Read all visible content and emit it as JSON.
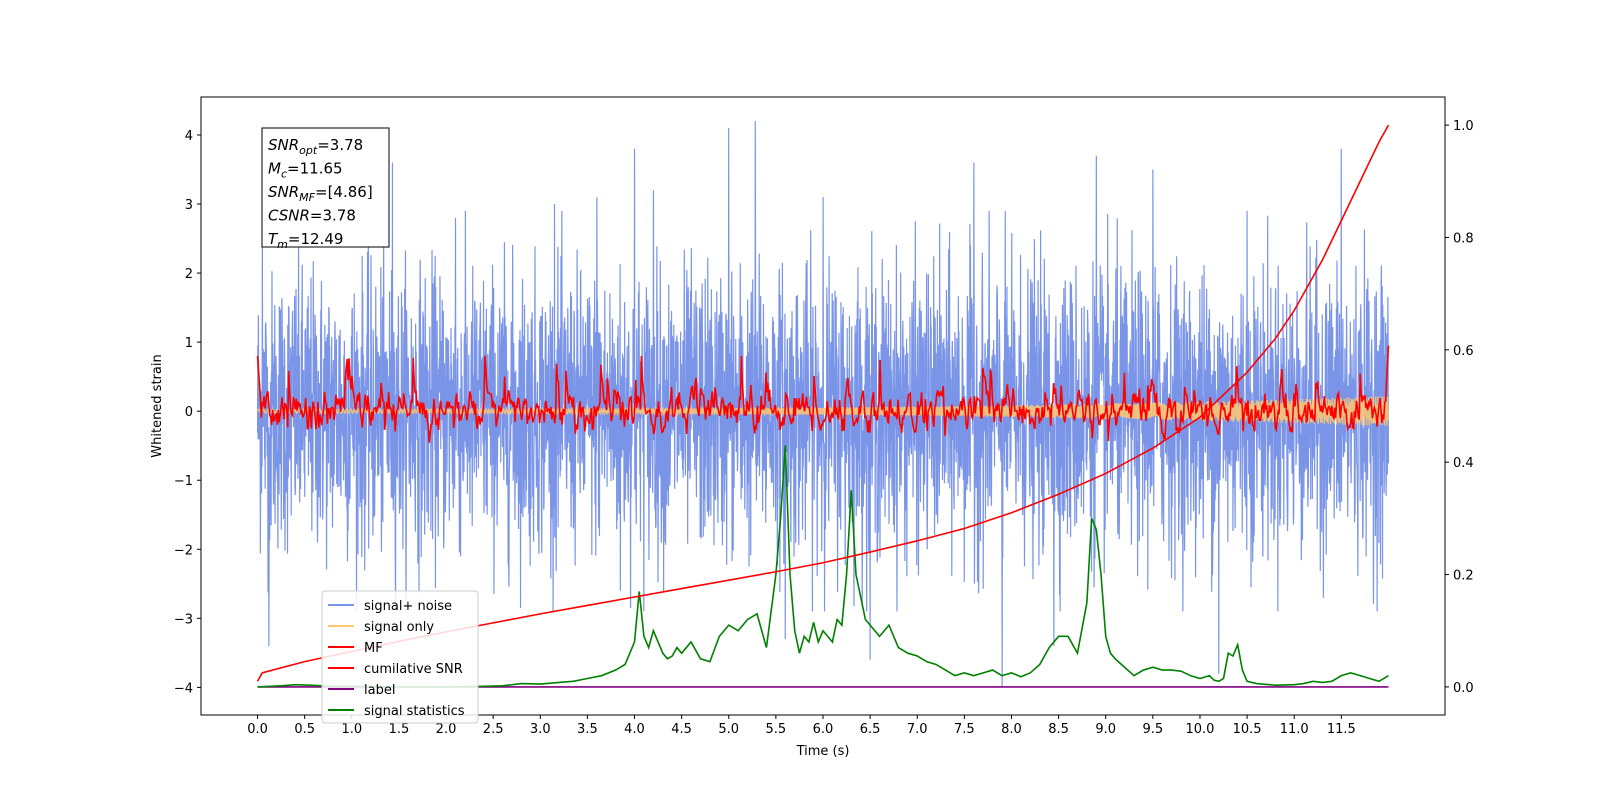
{
  "chart_data": {
    "type": "line",
    "xlabel": "Time (s)",
    "ylabel": "Whitened strain",
    "xlim": [
      -0.6,
      12.6
    ],
    "ylim": [
      -4.4,
      4.55
    ],
    "y2lim": [
      -0.05,
      1.05
    ],
    "x_ticks": [
      0.0,
      0.5,
      1.0,
      1.5,
      2.0,
      2.5,
      3.0,
      3.5,
      4.0,
      4.5,
      5.0,
      5.5,
      6.0,
      6.5,
      7.0,
      7.5,
      8.0,
      8.5,
      9.0,
      9.5,
      10.0,
      10.5,
      11.0,
      11.5
    ],
    "x_tick_labels": [
      "0.0",
      "0.5",
      "1.0",
      "1.5",
      "2.0",
      "2.5",
      "3.0",
      "3.5",
      "4.0",
      "4.5",
      "5.0",
      "5.5",
      "6.0",
      "6.5",
      "7.0",
      "7.5",
      "8.0",
      "8.5",
      "9.0",
      "9.5",
      "10.0",
      "10.5",
      "11.0",
      "11.5"
    ],
    "y_ticks": [
      -4,
      -3,
      -2,
      -1,
      0,
      1,
      2,
      3,
      4
    ],
    "y_tick_labels": [
      "−4",
      "−3",
      "−2",
      "−1",
      "0",
      "1",
      "2",
      "3",
      "4"
    ],
    "y2_ticks": [
      0.0,
      0.2,
      0.4,
      0.6,
      0.8,
      1.0
    ],
    "y2_tick_labels": [
      "0.0",
      "0.2",
      "0.4",
      "0.6",
      "0.8",
      "1.0"
    ],
    "grid": false,
    "legend_position": "lower-left",
    "annotation": [
      {
        "name": "SNR",
        "sub": "opt",
        "value": "=3.78"
      },
      {
        "name": "M",
        "sub": "c",
        "value": "=11.65"
      },
      {
        "name": "SNR",
        "sub": "MF",
        "value": "=[4.86]"
      },
      {
        "name": "CSNR",
        "sub": "",
        "value": "=3.78"
      },
      {
        "name": "T",
        "sub": "m",
        "value": "=12.49"
      }
    ],
    "series": [
      {
        "name": "signal+ noise",
        "color": "#7a95e8",
        "axis": "left",
        "kind": "noise",
        "x_range": [
          0,
          12.0
        ],
        "std": 1.0,
        "spikes": [
          {
            "x": 1.43,
            "y": 3.6
          },
          {
            "x": 3.15,
            "y": 3.0
          },
          {
            "x": 3.6,
            "y": 3.1
          },
          {
            "x": 3.85,
            "y": -2.6
          },
          {
            "x": 4.0,
            "y": 3.8
          },
          {
            "x": 4.2,
            "y": 3.2
          },
          {
            "x": 5.0,
            "y": 4.1
          },
          {
            "x": 5.28,
            "y": 4.2
          },
          {
            "x": 5.6,
            "y": -3.3
          },
          {
            "x": 6.0,
            "y": 3.1
          },
          {
            "x": 6.5,
            "y": -3.6
          },
          {
            "x": 7.6,
            "y": 3.6
          },
          {
            "x": 7.9,
            "y": -4.0
          },
          {
            "x": 8.45,
            "y": -3.4
          },
          {
            "x": 8.9,
            "y": 3.7
          },
          {
            "x": 9.5,
            "y": 3.5
          },
          {
            "x": 10.2,
            "y": -3.8
          },
          {
            "x": 11.5,
            "y": 3.8
          },
          {
            "x": 0.05,
            "y": 2.7
          },
          {
            "x": 0.12,
            "y": -3.4
          },
          {
            "x": 2.1,
            "y": 2.8
          },
          {
            "x": 10.5,
            "y": 2.9
          }
        ]
      },
      {
        "name": "signal only",
        "color": "#ffc870",
        "axis": "left",
        "kind": "chirp",
        "x_range": [
          0,
          12.0
        ],
        "amp_start": 0.03,
        "amp_end": 0.22
      },
      {
        "name": "MF",
        "color": "#ff0000",
        "axis": "left",
        "kind": "mf",
        "x_range": [
          0,
          12.0
        ],
        "start_value": 0.8,
        "end_value": 0.95,
        "std": 0.13
      },
      {
        "name": "cumilative SNR",
        "color": "#ff0000",
        "axis": "right",
        "x": [
          0.0,
          0.05,
          0.5,
          1.0,
          1.5,
          2.0,
          2.5,
          3.0,
          3.5,
          4.0,
          4.5,
          5.0,
          5.5,
          6.0,
          6.5,
          7.0,
          7.5,
          8.0,
          8.5,
          9.0,
          9.5,
          10.0,
          10.5,
          10.8,
          11.0,
          11.3,
          11.5,
          11.7,
          11.9,
          12.0
        ],
        "values": [
          0.01,
          0.025,
          0.045,
          0.063,
          0.081,
          0.098,
          0.114,
          0.13,
          0.145,
          0.16,
          0.175,
          0.19,
          0.205,
          0.221,
          0.24,
          0.26,
          0.282,
          0.31,
          0.343,
          0.38,
          0.425,
          0.48,
          0.56,
          0.62,
          0.67,
          0.76,
          0.83,
          0.9,
          0.97,
          1.0
        ]
      },
      {
        "name": "label",
        "color": "#800080",
        "axis": "right",
        "x": [
          0.0,
          12.0
        ],
        "values": [
          0.0,
          0.0
        ]
      },
      {
        "name": "signal statistics",
        "color": "#008000",
        "axis": "right",
        "x": [
          0.0,
          0.25,
          0.4,
          0.55,
          0.8,
          1.2,
          1.6,
          2.0,
          2.4,
          2.6,
          2.8,
          3.0,
          3.2,
          3.35,
          3.5,
          3.65,
          3.8,
          3.9,
          4.0,
          4.05,
          4.1,
          4.15,
          4.2,
          4.25,
          4.3,
          4.35,
          4.4,
          4.45,
          4.5,
          4.6,
          4.7,
          4.8,
          4.9,
          5.0,
          5.1,
          5.2,
          5.3,
          5.4,
          5.5,
          5.55,
          5.6,
          5.65,
          5.7,
          5.75,
          5.8,
          5.85,
          5.9,
          5.95,
          6.0,
          6.05,
          6.1,
          6.15,
          6.2,
          6.25,
          6.3,
          6.35,
          6.4,
          6.45,
          6.5,
          6.6,
          6.7,
          6.8,
          6.9,
          7.0,
          7.1,
          7.2,
          7.3,
          7.4,
          7.5,
          7.6,
          7.7,
          7.8,
          7.9,
          8.0,
          8.1,
          8.2,
          8.3,
          8.4,
          8.5,
          8.6,
          8.7,
          8.8,
          8.85,
          8.9,
          8.95,
          9.0,
          9.05,
          9.1,
          9.2,
          9.3,
          9.4,
          9.5,
          9.6,
          9.7,
          9.8,
          9.9,
          10.0,
          10.1,
          10.15,
          10.2,
          10.25,
          10.3,
          10.35,
          10.4,
          10.45,
          10.5,
          10.6,
          10.8,
          11.0,
          11.1,
          11.2,
          11.3,
          11.4,
          11.5,
          11.6,
          11.7,
          11.8,
          11.9,
          12.0
        ],
        "values": [
          0.0,
          0.002,
          0.004,
          0.003,
          0.001,
          0.001,
          0.0,
          0.0,
          0.001,
          0.002,
          0.006,
          0.005,
          0.008,
          0.01,
          0.015,
          0.02,
          0.03,
          0.04,
          0.08,
          0.17,
          0.09,
          0.07,
          0.1,
          0.08,
          0.06,
          0.05,
          0.055,
          0.07,
          0.06,
          0.08,
          0.05,
          0.045,
          0.09,
          0.11,
          0.1,
          0.12,
          0.13,
          0.07,
          0.2,
          0.3,
          0.43,
          0.2,
          0.1,
          0.06,
          0.09,
          0.08,
          0.115,
          0.08,
          0.1,
          0.09,
          0.08,
          0.12,
          0.11,
          0.2,
          0.35,
          0.2,
          0.16,
          0.12,
          0.11,
          0.09,
          0.11,
          0.07,
          0.06,
          0.055,
          0.045,
          0.04,
          0.03,
          0.02,
          0.025,
          0.02,
          0.025,
          0.03,
          0.02,
          0.025,
          0.018,
          0.025,
          0.04,
          0.07,
          0.09,
          0.09,
          0.06,
          0.15,
          0.3,
          0.28,
          0.2,
          0.09,
          0.06,
          0.05,
          0.035,
          0.02,
          0.03,
          0.035,
          0.03,
          0.03,
          0.028,
          0.02,
          0.015,
          0.02,
          0.012,
          0.01,
          0.015,
          0.06,
          0.055,
          0.075,
          0.03,
          0.01,
          0.006,
          0.003,
          0.004,
          0.006,
          0.01,
          0.008,
          0.01,
          0.02,
          0.025,
          0.02,
          0.015,
          0.01,
          0.02
        ]
      }
    ]
  }
}
